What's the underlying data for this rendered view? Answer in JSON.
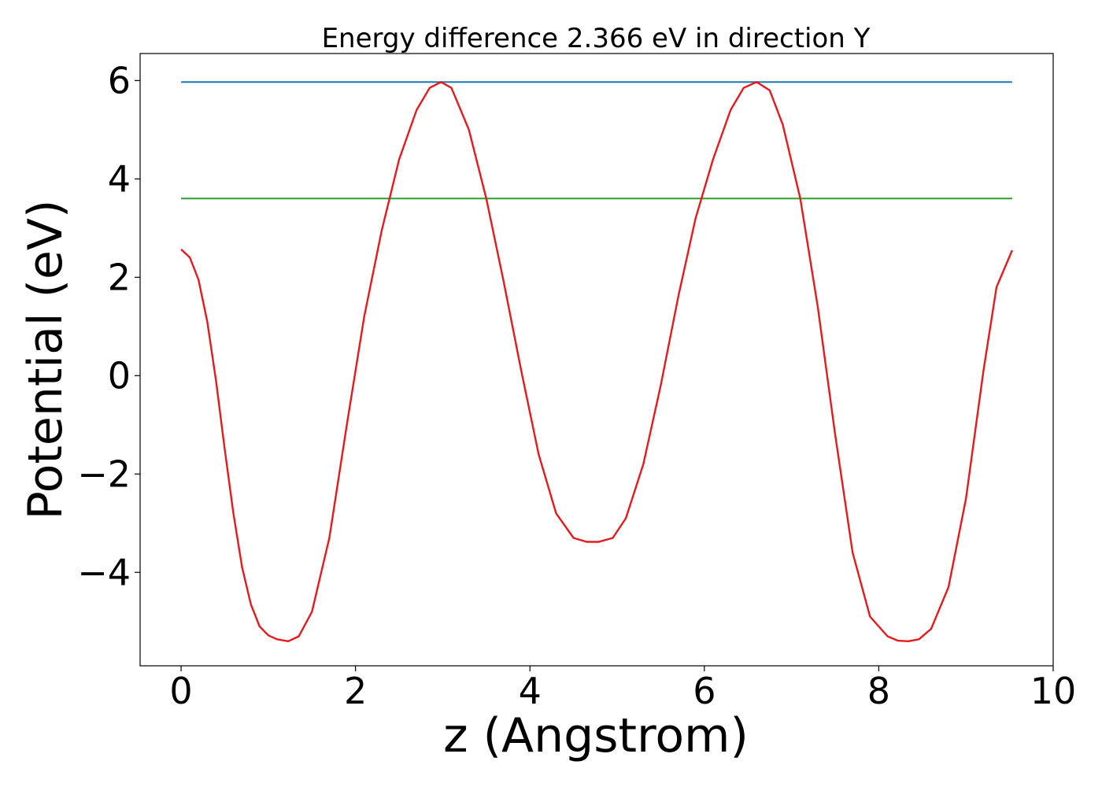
{
  "chart_data": {
    "type": "line",
    "title": "Energy difference 2.366 eV in direction Y",
    "xlabel": "z (Angstrom)",
    "ylabel": "Potential (eV)",
    "xlim": [
      -0.47,
      10.0
    ],
    "ylim": [
      -5.9,
      6.55
    ],
    "xticks": [
      0,
      2,
      4,
      6,
      8,
      10
    ],
    "xtick_labels": [
      "0",
      "2",
      "4",
      "6",
      "8",
      "10"
    ],
    "yticks": [
      -4,
      -2,
      0,
      2,
      4,
      6
    ],
    "ytick_labels": [
      "−4",
      "−2",
      "0",
      "2",
      "4",
      "6"
    ],
    "grid": false,
    "legend": "none",
    "series": [
      {
        "color": "#1f77b4",
        "x": [
          0,
          9.53
        ],
        "y": [
          5.97,
          5.97
        ]
      },
      {
        "color": "#2ca02c",
        "x": [
          0,
          9.53
        ],
        "y": [
          3.6,
          3.6
        ]
      },
      {
        "color": "#e41a1c",
        "x": [
          0,
          0.1,
          0.2,
          0.3,
          0.4,
          0.5,
          0.6,
          0.7,
          0.8,
          0.9,
          1.0,
          1.1,
          1.23,
          1.35,
          1.5,
          1.7,
          1.9,
          2.1,
          2.3,
          2.5,
          2.7,
          2.85,
          2.98,
          3.1,
          3.3,
          3.5,
          3.7,
          3.9,
          4.1,
          4.3,
          4.5,
          4.65,
          4.79,
          4.95,
          5.1,
          5.3,
          5.5,
          5.7,
          5.9,
          6.1,
          6.3,
          6.45,
          6.6,
          6.75,
          6.9,
          7.1,
          7.3,
          7.5,
          7.7,
          7.9,
          8.1,
          8.22,
          8.34,
          8.46,
          8.6,
          8.8,
          9.0,
          9.2,
          9.35,
          9.53
        ],
        "y": [
          2.57,
          2.4,
          1.95,
          1.1,
          -0.1,
          -1.5,
          -2.8,
          -3.9,
          -4.65,
          -5.1,
          -5.28,
          -5.36,
          -5.4,
          -5.3,
          -4.8,
          -3.3,
          -1.0,
          1.2,
          2.95,
          4.4,
          5.4,
          5.85,
          5.97,
          5.85,
          5.0,
          3.6,
          1.9,
          0.1,
          -1.6,
          -2.8,
          -3.3,
          -3.38,
          -3.38,
          -3.3,
          -2.9,
          -1.8,
          -0.2,
          1.6,
          3.2,
          4.4,
          5.4,
          5.85,
          5.97,
          5.8,
          5.1,
          3.6,
          1.4,
          -1.2,
          -3.6,
          -4.9,
          -5.3,
          -5.39,
          -5.4,
          -5.36,
          -5.15,
          -4.3,
          -2.5,
          0.1,
          1.8,
          2.55
        ]
      }
    ]
  }
}
